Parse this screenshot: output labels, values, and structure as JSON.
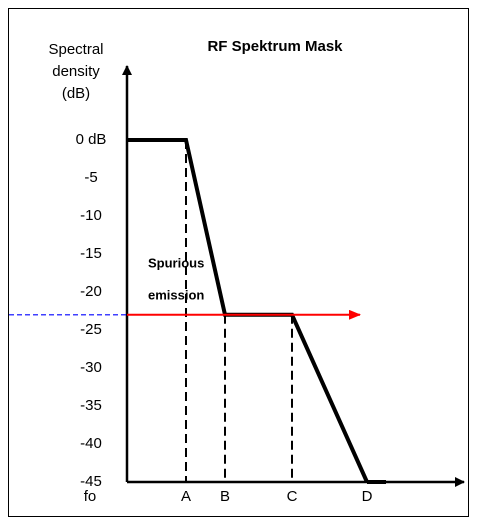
{
  "chart_data": {
    "type": "line",
    "title": "RF Spektrum Mask",
    "y_label": [
      "Spectral",
      "density",
      "(dB)"
    ],
    "categories": [
      "fo",
      "A",
      "B",
      "C",
      "D"
    ],
    "values": [
      0,
      0,
      -23,
      -23,
      -45
    ],
    "color": "#000000",
    "ylim": [
      -45,
      0
    ],
    "yticks": [
      {
        "value": 0,
        "label": "0 dB"
      },
      -5,
      -10,
      -15,
      -20,
      -25,
      -30,
      -35,
      -40,
      -45
    ],
    "annotation": [
      "Spurious",
      "emission"
    ],
    "spurious_level": -23,
    "spurious_color": "#ff0000"
  }
}
